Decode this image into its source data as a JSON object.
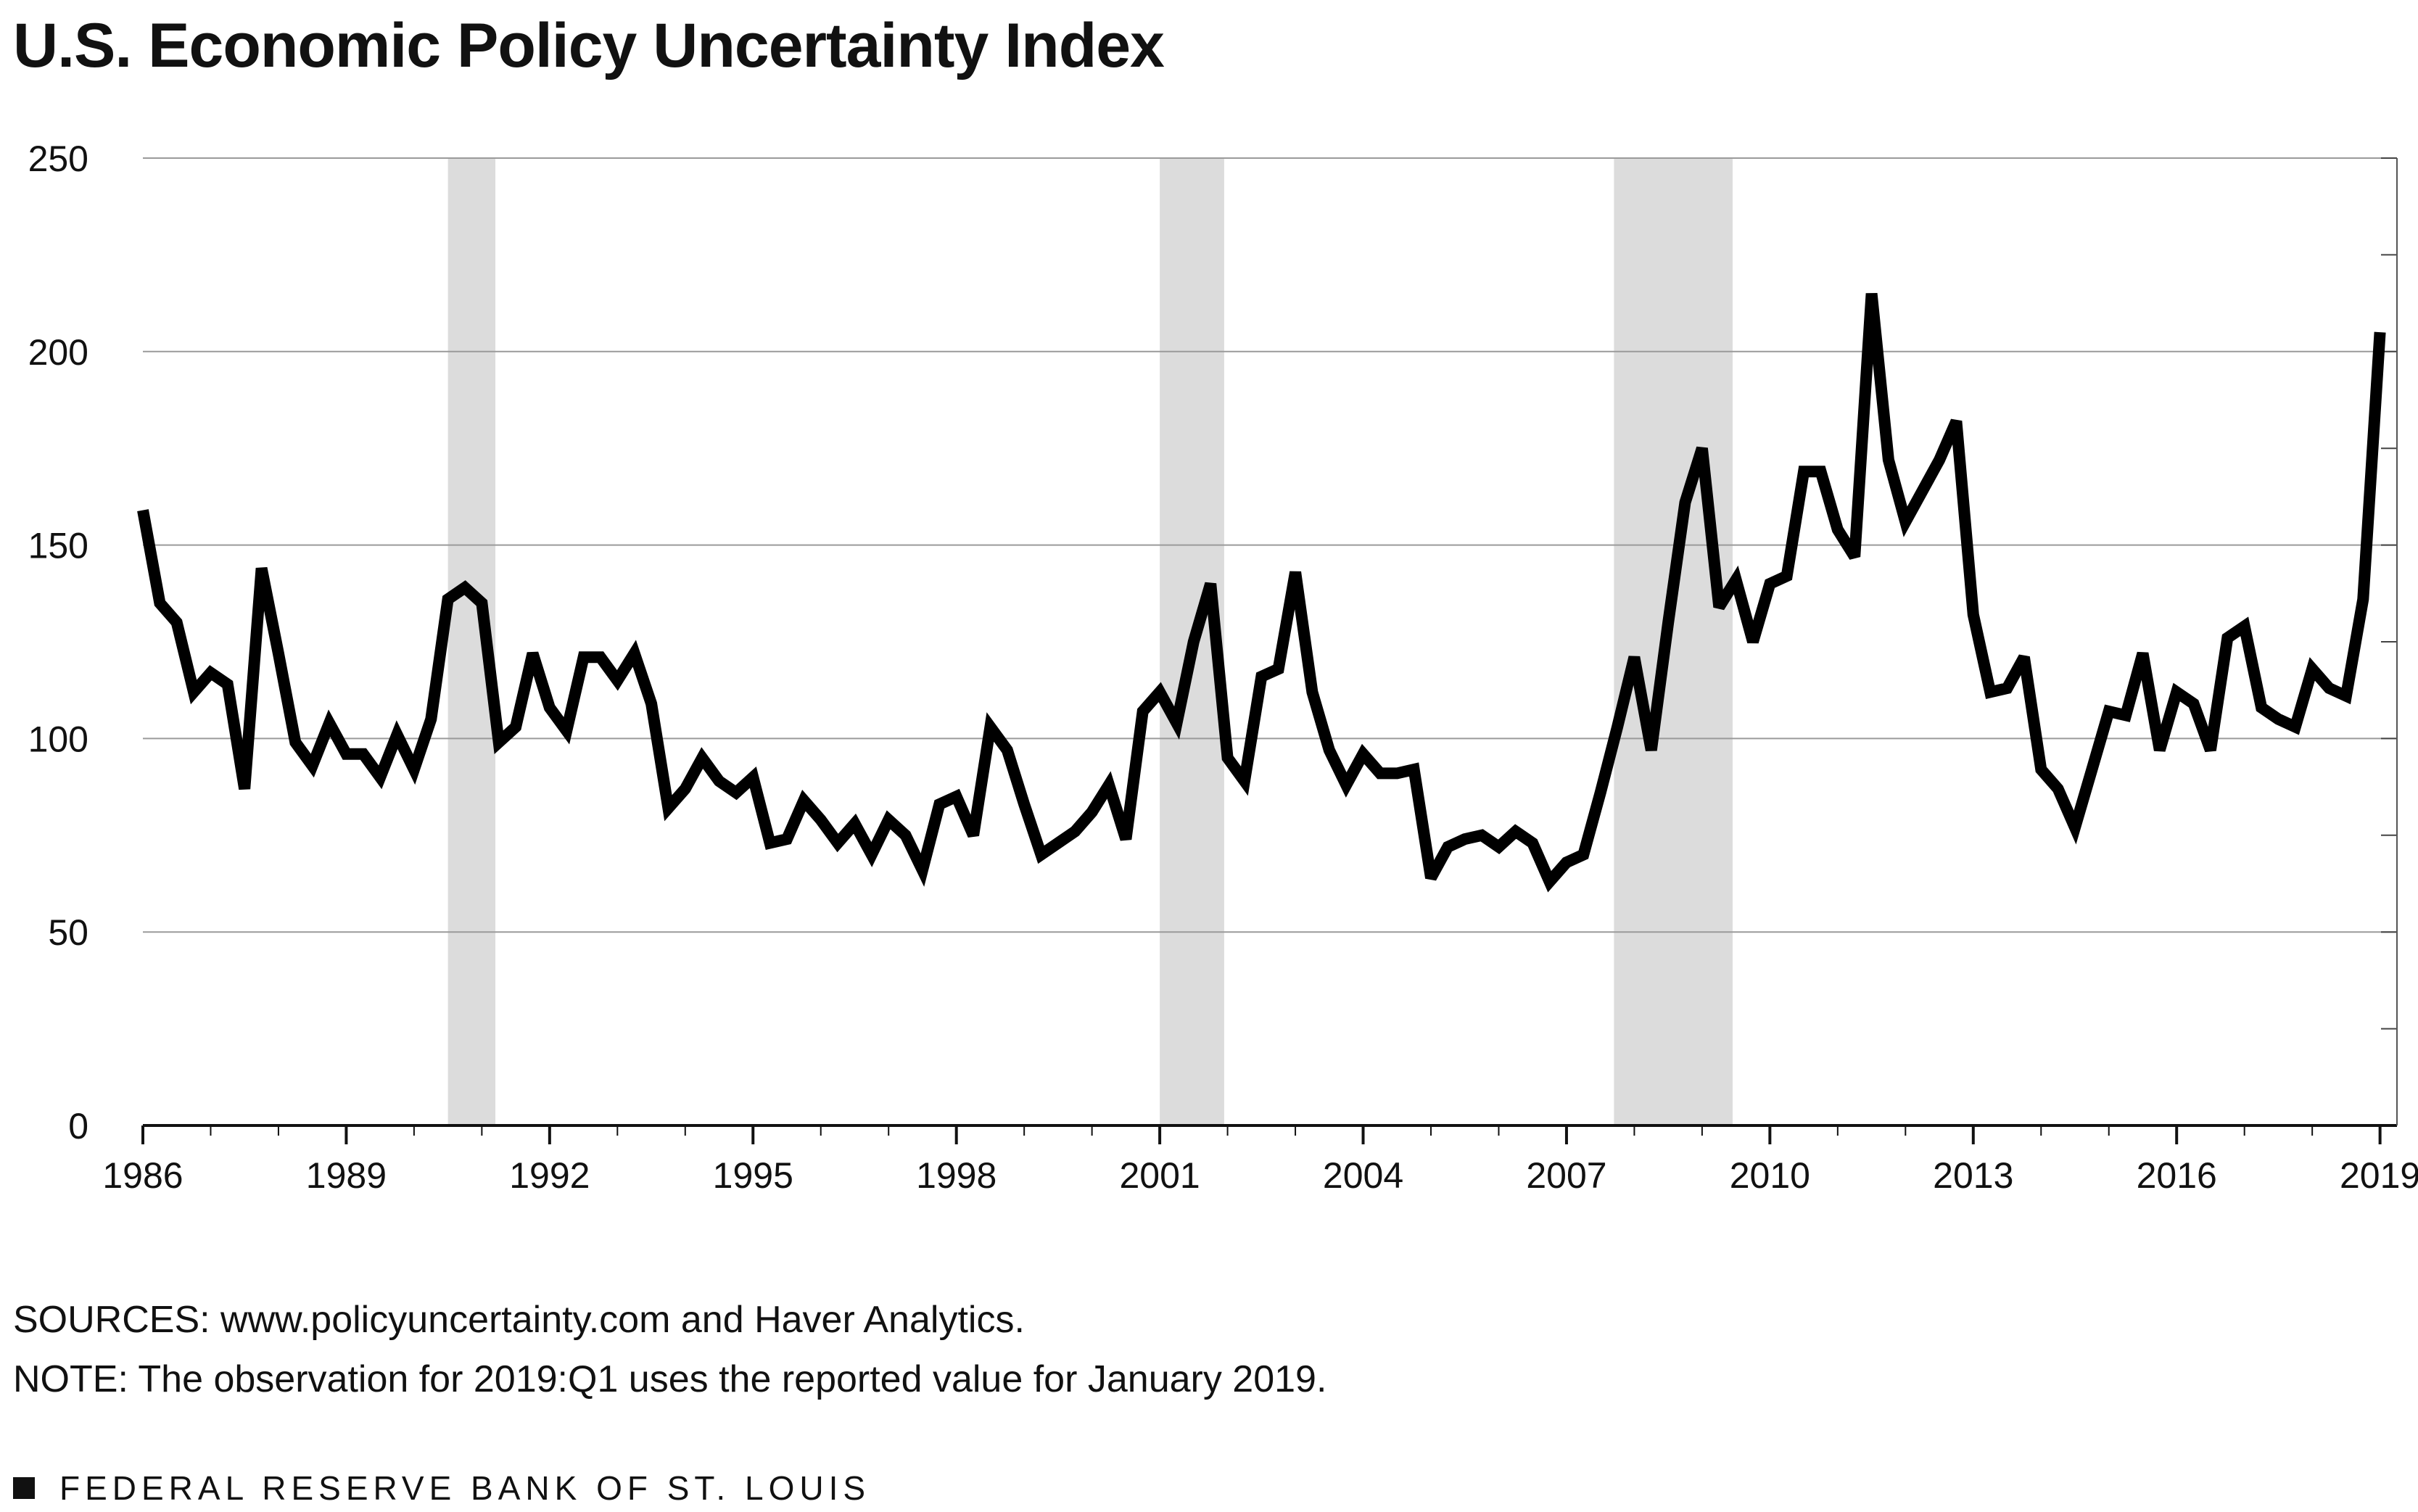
{
  "chart_data": {
    "type": "line",
    "title": "U.S. Economic Policy Uncertainty Index",
    "xlabel": "",
    "ylabel": "",
    "ylim": [
      0,
      250
    ],
    "yticks": [
      0,
      50,
      100,
      150,
      200,
      250
    ],
    "xlim": [
      1986.0,
      2019.25
    ],
    "xticks": [
      1986,
      1989,
      1992,
      1995,
      1998,
      2001,
      2004,
      2007,
      2010,
      2013,
      2016,
      2019
    ],
    "grid": "horizontal",
    "line_color": "#000000",
    "recession_color": "#dcdcdc",
    "recessions": [
      {
        "start": 1990.5,
        "end": 1991.2
      },
      {
        "start": 2001.0,
        "end": 2001.95
      },
      {
        "start": 2007.7,
        "end": 2009.45
      }
    ],
    "series": [
      {
        "name": "U.S. Economic Policy Uncertainty Index",
        "x": [
          1986.0,
          1986.25,
          1986.5,
          1986.75,
          1987.0,
          1987.25,
          1987.5,
          1987.75,
          1988.0,
          1988.25,
          1988.5,
          1988.75,
          1989.0,
          1989.25,
          1989.5,
          1989.75,
          1990.0,
          1990.25,
          1990.5,
          1990.75,
          1991.0,
          1991.25,
          1991.5,
          1991.75,
          1992.0,
          1992.25,
          1992.5,
          1992.75,
          1993.0,
          1993.25,
          1993.5,
          1993.75,
          1994.0,
          1994.25,
          1994.5,
          1994.75,
          1995.0,
          1995.25,
          1995.5,
          1995.75,
          1996.0,
          1996.25,
          1996.5,
          1996.75,
          1997.0,
          1997.25,
          1997.5,
          1997.75,
          1998.0,
          1998.25,
          1998.5,
          1998.75,
          1999.0,
          1999.25,
          1999.5,
          1999.75,
          2000.0,
          2000.25,
          2000.5,
          2000.75,
          2001.0,
          2001.25,
          2001.5,
          2001.75,
          2002.0,
          2002.25,
          2002.5,
          2002.75,
          2003.0,
          2003.25,
          2003.5,
          2003.75,
          2004.0,
          2004.25,
          2004.5,
          2004.75,
          2005.0,
          2005.25,
          2005.5,
          2005.75,
          2006.0,
          2006.25,
          2006.5,
          2006.75,
          2007.0,
          2007.25,
          2007.5,
          2007.75,
          2008.0,
          2008.25,
          2008.5,
          2008.75,
          2009.0,
          2009.25,
          2009.5,
          2009.75,
          2010.0,
          2010.25,
          2010.5,
          2010.75,
          2011.0,
          2011.25,
          2011.5,
          2011.75,
          2012.0,
          2012.25,
          2012.5,
          2012.75,
          2013.0,
          2013.25,
          2013.5,
          2013.75,
          2014.0,
          2014.25,
          2014.5,
          2014.75,
          2015.0,
          2015.25,
          2015.5,
          2015.75,
          2016.0,
          2016.25,
          2016.5,
          2016.75,
          2017.0,
          2017.25,
          2017.5,
          2017.75,
          2018.0,
          2018.25,
          2018.5,
          2018.75,
          2019.0
        ],
        "values": [
          159,
          135,
          130,
          112,
          117,
          114,
          87,
          144,
          122,
          99,
          93,
          104,
          96,
          96,
          90,
          101,
          92,
          105,
          136,
          139,
          135,
          99,
          103,
          122,
          108,
          102,
          121,
          121,
          115,
          122,
          109,
          82,
          87,
          95,
          89,
          86,
          90,
          73,
          74,
          84,
          79,
          73,
          78,
          70,
          79,
          75,
          66,
          83,
          85,
          75,
          103,
          97,
          83,
          70,
          73,
          76,
          81,
          88,
          74,
          107,
          112,
          104,
          125,
          140,
          95,
          89,
          116,
          118,
          143,
          112,
          97,
          88,
          96,
          91,
          91,
          92,
          64,
          72,
          74,
          75,
          72,
          76,
          73,
          63,
          68,
          70,
          86,
          103,
          121,
          97,
          130,
          161,
          175,
          134,
          141,
          125,
          140,
          142,
          169,
          169,
          154,
          147,
          215,
          172,
          156,
          164,
          172,
          182,
          132,
          112,
          113,
          121,
          92,
          87,
          77,
          92,
          107,
          106,
          122,
          97,
          112,
          109,
          97,
          126,
          129,
          108,
          105,
          103,
          118,
          113,
          111,
          136,
          205
        ]
      }
    ]
  },
  "sources": "SOURCES: www.policyuncertainty.com and Haver Analytics.",
  "note": "NOTE: The observation for 2019:Q1 uses the reported value for January 2019.",
  "footer": "FEDERAL RESERVE BANK OF ST. LOUIS"
}
